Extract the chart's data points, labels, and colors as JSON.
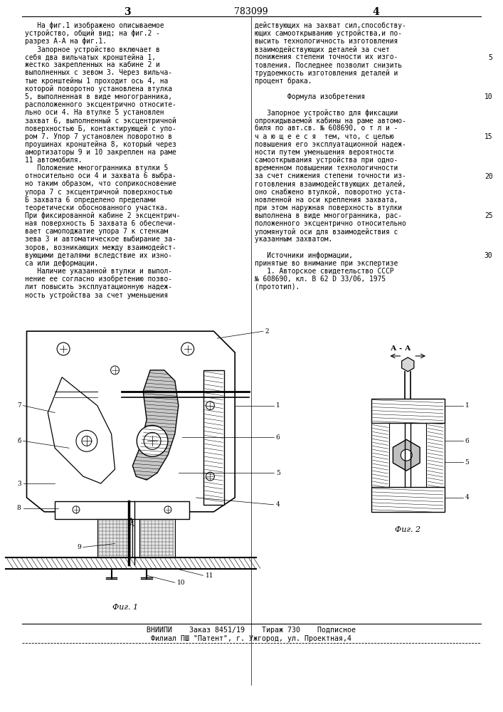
{
  "page_width": 7.07,
  "page_height": 10.0,
  "background_color": "#ffffff",
  "page_number_left": "3",
  "page_number_center": "783099",
  "page_number_right": "4",
  "left_col_lines": [
    "   На фиг.1 изображено описываемое",
    "устройство, общий вид; на фиг.2 -",
    "разрез А-А на фиг.1.",
    "   Запорное устройство включает в",
    "себя два вильчатых кронштейна 1,",
    "жестко закрепленных на кабине 2 и",
    "выполненных с зевом 3. Через вильча-",
    "тые кронштейны 1 проходит ось 4, на",
    "которой поворотно установлена втулка",
    "5, выполненная в виде многогранника,",
    "расположенного эксцентрично относите-",
    "льно оси 4. На втулке 5 установлен",
    "захват 6, выполненный с эксцентричной",
    "поверхностью Б, контактирующей с упо-",
    "ром 7. Упор 7 установлен поворотно в",
    "проушинах кронштейна 8, который через",
    "амортизаторы 9 и 10 закреплен на раме",
    "11 автомобиля.",
    "   Положение многогранника втулки 5",
    "относительно оси 4 и захвата 6 выбра-",
    "но таким образом, что соприкосновение",
    "упора 7 с эксцентричной поверхностью",
    "Б захвата 6 определено пределами",
    "теоретически обоснованного участка.",
    "При фиксированной кабине 2 эксцентрич-",
    "ная поверхность Б захвата 6 обеспечи-",
    "вает самоподжатие упора 7 к стенкам",
    "зева 3 и автоматическое выбирание за-",
    "зоров, возникающих между взаимодейст-",
    "вующими деталями вследствие их изно-",
    "са или деформации.",
    "   Наличие указанной втулки и выпол-",
    "нение ее согласно изобретению позво-",
    "лит повысить эксплуатационную надеж-",
    "ность устройства за счет уменьшения"
  ],
  "right_col_lines": [
    "действующих на захват сил,способству-",
    "ющих самооткрыванию устройства,и по-",
    "высить технологичность изготовления",
    "взаимодействующих деталей за счет",
    "понижения степени точности их изго-",
    "товления. Последнее позволит снизить",
    "трудоемкость изготовления деталей и",
    "процент брака.",
    "",
    "        Формула изобретения",
    "",
    "   Запорное устройство для фиксации",
    "опрокидываемой кабины на раме автомо-",
    "биля по авт.св. № 608690, о т л и -",
    "ч а ю щ е е с я  тем, что, с целью",
    "повышения его эксплуатационной надеж-",
    "ности путем уменьшения вероятности",
    "самооткрывания устройства при одно-",
    "временном повышении технологичности",
    "за счет снижения степени точности из-",
    "готовления взаимодействующих деталей,",
    "оно снабжено втулкой, поворотно уста-",
    "новленной на оси крепления захвата,",
    "при этом наружная поверхность втулки",
    "выполнена в виде многогранника, рас-",
    "положенного эксцентрично относительно",
    "упомянутой оси для взаимодействия с",
    "указанным захватом.",
    "",
    "   Источники информации,",
    "принятые во внимание при экспертизе",
    "   1. Авторское свидетельство СССР",
    "№ 608690, кл. В 62 D 33/06, 1975",
    "(прототип)."
  ],
  "line_numbers": [
    "5",
    "10",
    "15",
    "20",
    "25",
    "30"
  ],
  "line_number_rows": [
    5,
    10,
    15,
    20,
    25,
    30
  ],
  "footer_line1": "ВНИИПИ    Заказ 8451/19    Тираж 730    Подписное",
  "footer_line2": "Филиал ПШ \"Патент\", г. Ужгород, ул. Проектная,4"
}
